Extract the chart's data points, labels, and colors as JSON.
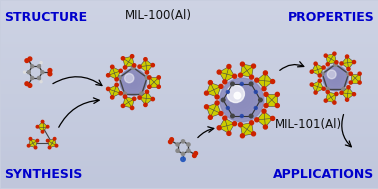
{
  "bg_color": "#c8cedf",
  "bg_gradient_top": "#d4d9ea",
  "bg_gradient_bottom": "#b8bfd8",
  "title": "MIL-100(Al)",
  "title2": "MIL-101(Al)",
  "label_tl": "Structure",
  "label_tr": "Properties",
  "label_bl": "Synthesis",
  "label_br": "Applications",
  "label_color": "#0000cc",
  "label_fontsize": 8.5,
  "mol_label_fontsize": 8.0,
  "mol_label_color": "#111111",
  "figsize": [
    3.78,
    1.89
  ],
  "dpi": 100,
  "yellow_color": "#cccc00",
  "yellow_dark": "#999900",
  "red_color": "#cc2200",
  "gray_color": "#444444",
  "gray_light": "#888888",
  "sphere_purple": "#8888bb",
  "sphere_purple_light": "#aaaadd",
  "white_color": "#ffffff",
  "dark_gray": "#333333",
  "green_color": "#88aa00",
  "blue_dot": "#2244aa"
}
